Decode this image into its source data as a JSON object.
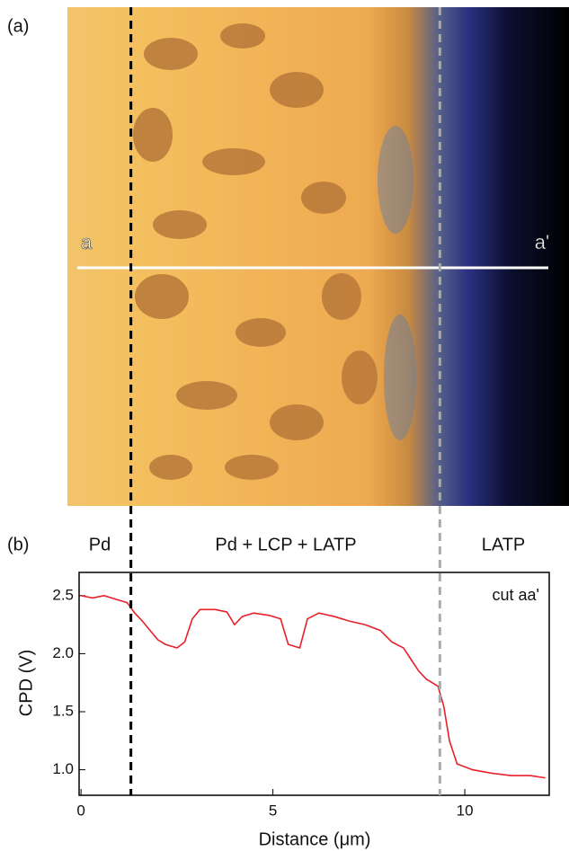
{
  "panel_a": {
    "label": "(a)",
    "line_start": "a",
    "line_end": "a'"
  },
  "chart_data": {
    "type": "line",
    "panel_label": "(b)",
    "region_labels": [
      "Pd",
      "Pd + LCP + LATP",
      "LATP"
    ],
    "annotation": "cut aa'",
    "x_label": "Distance (μm)",
    "y_label": "CPD (V)",
    "x": [
      0,
      0.3,
      0.6,
      0.9,
      1.2,
      1.4,
      1.6,
      1.8,
      2.0,
      2.2,
      2.5,
      2.7,
      2.9,
      3.1,
      3.5,
      3.8,
      4.0,
      4.2,
      4.5,
      4.9,
      5.2,
      5.4,
      5.7,
      5.9,
      6.2,
      6.6,
      7.0,
      7.4,
      7.8,
      8.1,
      8.4,
      8.6,
      8.8,
      9.0,
      9.3,
      9.45,
      9.6,
      9.8,
      10.2,
      10.7,
      11.2,
      11.7,
      12.1
    ],
    "series": [
      {
        "color": "#e8202a",
        "values": [
          2.5,
          2.48,
          2.5,
          2.47,
          2.44,
          2.35,
          2.28,
          2.2,
          2.12,
          2.08,
          2.05,
          2.1,
          2.3,
          2.38,
          2.38,
          2.36,
          2.25,
          2.32,
          2.35,
          2.33,
          2.3,
          2.08,
          2.05,
          2.3,
          2.35,
          2.32,
          2.28,
          2.25,
          2.2,
          2.1,
          2.05,
          1.95,
          1.85,
          1.78,
          1.72,
          1.55,
          1.25,
          1.05,
          1.0,
          0.97,
          0.95,
          0.95,
          0.93
        ]
      }
    ],
    "vlines": [
      {
        "x": 1.3,
        "color": "#000000"
      },
      {
        "x": 9.35,
        "color": "#aaaaaa"
      }
    ],
    "xlim": [
      -0.05,
      12.2
    ],
    "ylim": [
      0.78,
      2.7
    ],
    "xticks": [
      0,
      5,
      10
    ],
    "yticks": [
      {
        "value": 1,
        "label": "1.0"
      },
      1.5,
      {
        "value": 2,
        "label": "2.0"
      },
      2.5
    ]
  }
}
